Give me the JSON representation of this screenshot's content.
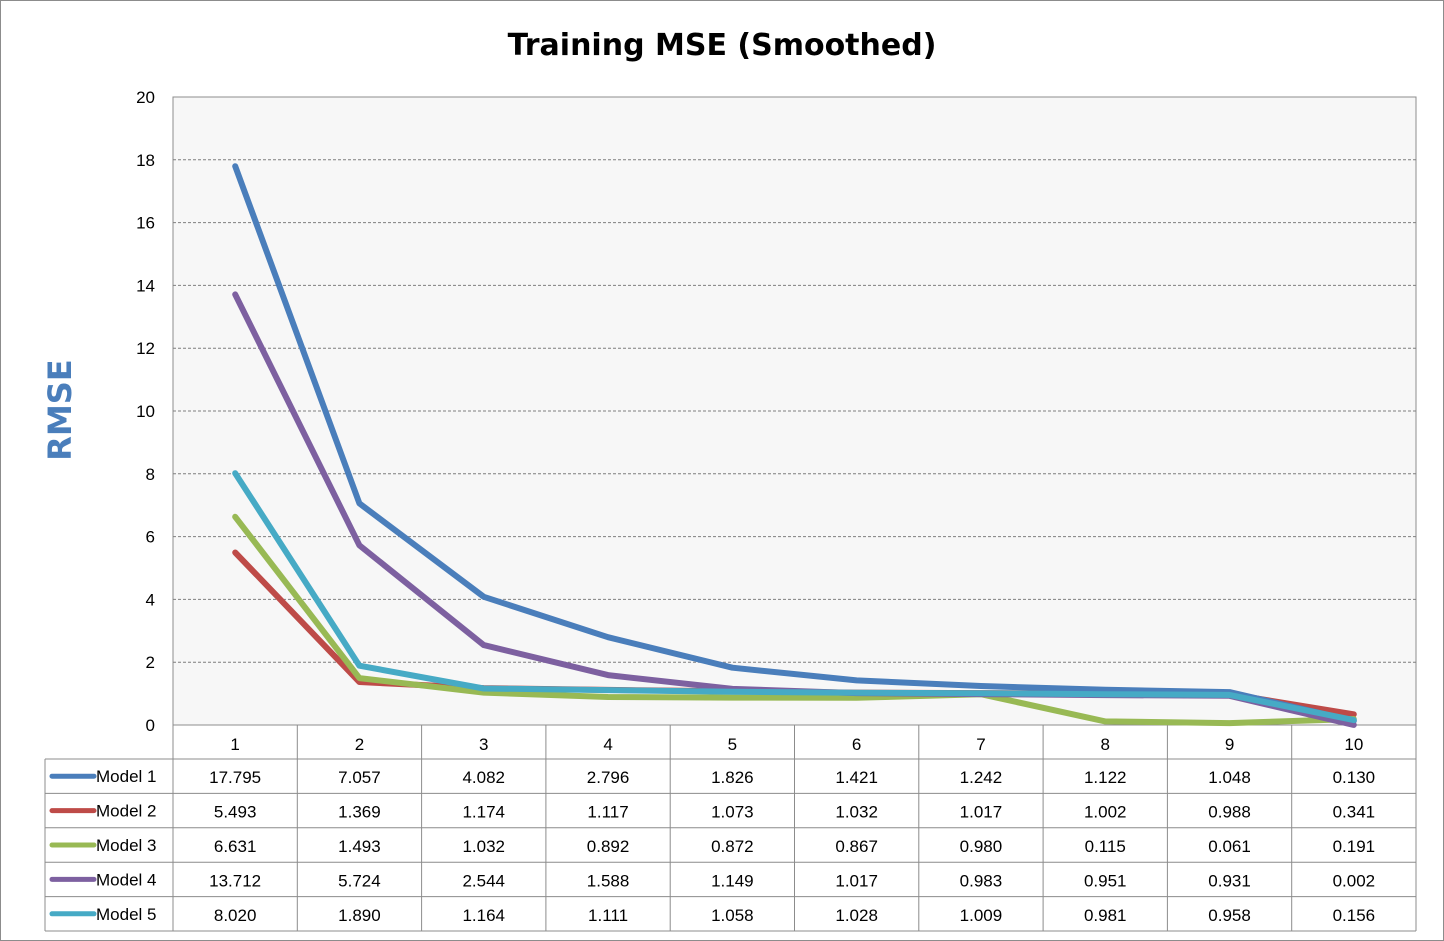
{
  "chart_data": {
    "type": "line",
    "title": "Training MSE (Smoothed)",
    "ylabel": "RMSE",
    "xlabel": "",
    "categories": [
      "1",
      "2",
      "3",
      "4",
      "5",
      "6",
      "7",
      "8",
      "9",
      "10"
    ],
    "ylim": [
      0,
      20
    ],
    "yticks": [
      "0",
      "2",
      "4",
      "6",
      "8",
      "10",
      "12",
      "14",
      "16",
      "18",
      "20"
    ],
    "grid": true,
    "legend": "data-table",
    "series": [
      {
        "name": "Model 1",
        "color": "#4a7ebb",
        "values": [
          17.795,
          7.057,
          4.082,
          2.796,
          1.826,
          1.421,
          1.242,
          1.122,
          1.048,
          0.13
        ],
        "labels": [
          "17.795",
          "7.057",
          "4.082",
          "2.796",
          "1.826",
          "1.421",
          "1.242",
          "1.122",
          "1.048",
          "0.130"
        ]
      },
      {
        "name": "Model 2",
        "color": "#be4b48",
        "values": [
          5.493,
          1.369,
          1.174,
          1.117,
          1.073,
          1.032,
          1.017,
          1.002,
          0.988,
          0.341
        ],
        "labels": [
          "5.493",
          "1.369",
          "1.174",
          "1.117",
          "1.073",
          "1.032",
          "1.017",
          "1.002",
          "0.988",
          "0.341"
        ]
      },
      {
        "name": "Model 3",
        "color": "#98b954",
        "values": [
          6.631,
          1.493,
          1.032,
          0.892,
          0.872,
          0.867,
          0.98,
          0.115,
          0.061,
          0.191
        ],
        "labels": [
          "6.631",
          "1.493",
          "1.032",
          "0.892",
          "0.872",
          "0.867",
          "0.980",
          "0.115",
          "0.061",
          "0.191"
        ]
      },
      {
        "name": "Model 4",
        "color": "#7d60a0",
        "values": [
          13.712,
          5.724,
          2.544,
          1.588,
          1.149,
          1.017,
          0.983,
          0.951,
          0.931,
          0.002
        ],
        "labels": [
          "13.712",
          "5.724",
          "2.544",
          "1.588",
          "1.149",
          "1.017",
          "0.983",
          "0.951",
          "0.931",
          "0.002"
        ]
      },
      {
        "name": "Model 5",
        "color": "#46aac5",
        "values": [
          8.02,
          1.89,
          1.164,
          1.111,
          1.058,
          1.028,
          1.009,
          0.981,
          0.958,
          0.156
        ],
        "labels": [
          "8.020",
          "1.890",
          "1.164",
          "1.111",
          "1.058",
          "1.028",
          "1.009",
          "0.981",
          "0.958",
          "0.156"
        ]
      }
    ]
  }
}
